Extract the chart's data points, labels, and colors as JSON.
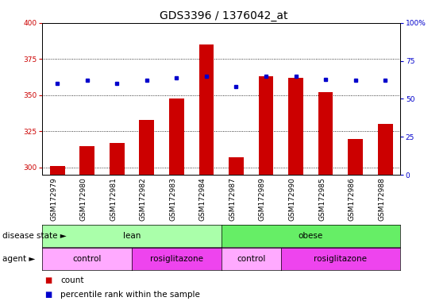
{
  "title": "GDS3396 / 1376042_at",
  "samples": [
    "GSM172979",
    "GSM172980",
    "GSM172981",
    "GSM172982",
    "GSM172983",
    "GSM172984",
    "GSM172987",
    "GSM172989",
    "GSM172990",
    "GSM172985",
    "GSM172986",
    "GSM172988"
  ],
  "counts": [
    301,
    315,
    317,
    333,
    348,
    385,
    307,
    363,
    362,
    352,
    320,
    330
  ],
  "percentile_ranks": [
    60,
    62,
    60,
    62,
    64,
    65,
    58,
    65,
    65,
    63,
    62,
    62
  ],
  "ylim_left": [
    295,
    400
  ],
  "ylim_right": [
    0,
    100
  ],
  "yticks_left": [
    300,
    325,
    350,
    375,
    400
  ],
  "yticks_right": [
    0,
    25,
    50,
    75,
    100
  ],
  "bar_color": "#cc0000",
  "dot_color": "#0000cc",
  "background_color": "#ffffff",
  "plot_bg_color": "#ffffff",
  "lean_color": "#aaffaa",
  "obese_color": "#66ee66",
  "control_color": "#ffaaff",
  "rosi_color": "#ee44ee",
  "lean_label": "lean",
  "obese_label": "obese",
  "control_label": "control",
  "rosi_label": "rosiglitazone",
  "disease_state_label": "disease state",
  "agent_label": "agent",
  "legend_count": "count",
  "legend_percentile": "percentile rank within the sample",
  "lean_samples": 6,
  "lean_control_samples": 3,
  "obese_samples": 6,
  "obese_control_samples": 2,
  "title_fontsize": 10,
  "tick_fontsize": 6.5,
  "label_fontsize": 7.5,
  "annot_fontsize": 7.5
}
